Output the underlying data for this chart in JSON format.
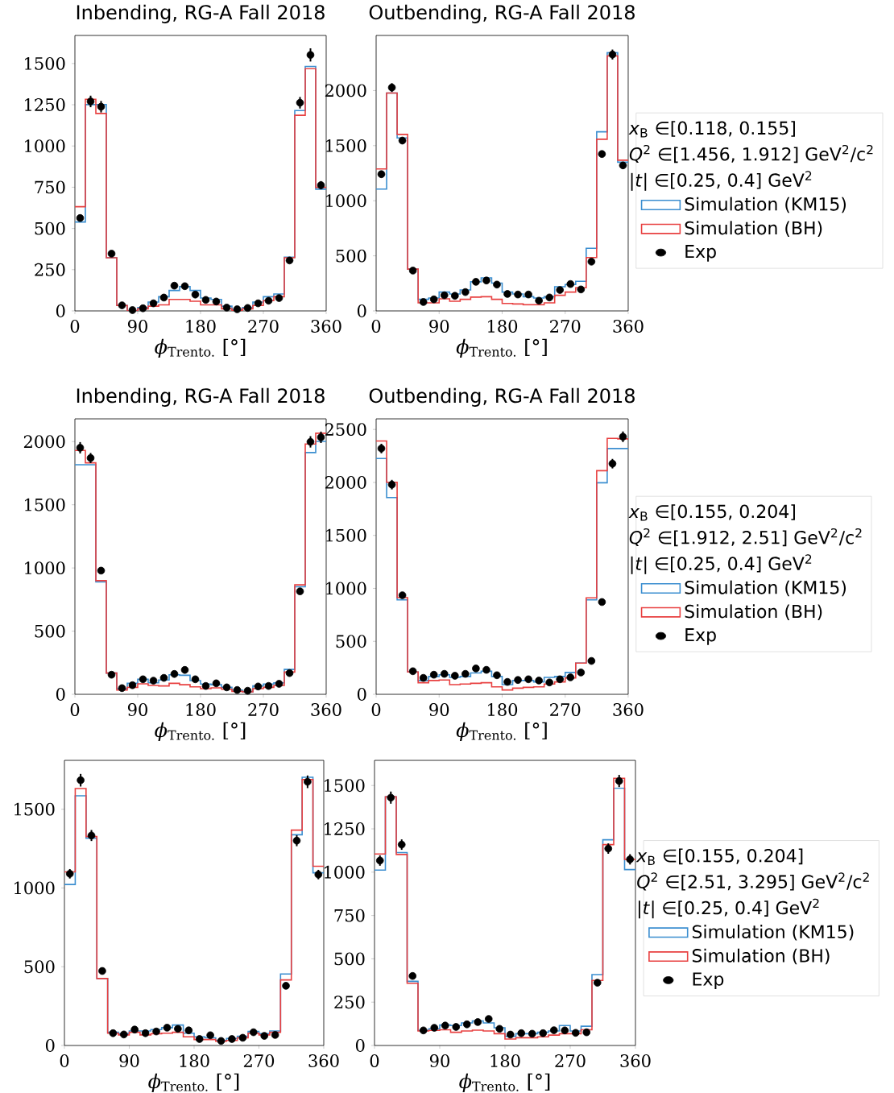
{
  "chart_data": [
    {
      "type": "histogram",
      "title": "Inbending, RG-A Fall 2018",
      "xlabel": "*ϕ*$_{Trento.}$ [°]",
      "bins": [
        0,
        15,
        30,
        45,
        60,
        75,
        90,
        105,
        120,
        135,
        150,
        165,
        180,
        195,
        210,
        225,
        240,
        255,
        270,
        285,
        300,
        315,
        330,
        345,
        360
      ],
      "xlim": [
        0,
        360
      ],
      "xticks": [
        0,
        90,
        180,
        270,
        360
      ],
      "ylim": [
        0,
        1670
      ],
      "yticks": [
        0,
        250,
        500,
        750,
        1000,
        1250,
        1500
      ],
      "legend": false,
      "series": [
        {
          "color": "#3b8ed0",
          "values": [
            539,
            1251,
            1251,
            322,
            33,
            0,
            21,
            54,
            86,
            124,
            147,
            124,
            78,
            70,
            29,
            10,
            21,
            54,
            86,
            103,
            326,
            1215,
            1482,
            738
          ]
        },
        {
          "color": "#e84040",
          "values": [
            632,
            1283,
            1197,
            322,
            33,
            0,
            13,
            29,
            37,
            70,
            70,
            59,
            37,
            37,
            13,
            3,
            13,
            33,
            62,
            86,
            322,
            1186,
            1469,
            749
          ]
        },
        {
          "type": "scatter",
          "color": "#000000",
          "marker": "circle",
          "x": [
            7.5,
            22.5,
            37.5,
            52.5,
            67.5,
            82.5,
            97.5,
            112.5,
            127.5,
            142.5,
            157.5,
            172.5,
            187.5,
            202.5,
            217.5,
            232.5,
            247.5,
            262.5,
            277.5,
            292.5,
            307.5,
            322.5,
            337.5,
            352.5
          ],
          "values": [
            563,
            1270,
            1238,
            347,
            34,
            5,
            16,
            46,
            81,
            153,
            150,
            99,
            67,
            57,
            20,
            10,
            18,
            46,
            62,
            78,
            306,
            1262,
            1552,
            762
          ],
          "errors": [
            20,
            35,
            35,
            null,
            null,
            null,
            null,
            null,
            null,
            null,
            null,
            null,
            null,
            null,
            null,
            null,
            null,
            null,
            null,
            null,
            null,
            35,
            40,
            25
          ]
        }
      ]
    },
    {
      "type": "histogram",
      "title": "Outbending, RG-A Fall 2018",
      "xlabel": "*ϕ*$_{Trento.}$ [°]",
      "bins": [
        0,
        15,
        30,
        45,
        60,
        75,
        90,
        105,
        120,
        135,
        150,
        165,
        180,
        195,
        210,
        225,
        240,
        255,
        270,
        285,
        300,
        315,
        330,
        345,
        360
      ],
      "xlim": [
        0,
        360
      ],
      "xticks": [
        0,
        90,
        180,
        270,
        360
      ],
      "ylim": [
        0,
        2500
      ],
      "yticks": [
        0,
        500,
        1000,
        1500,
        2000
      ],
      "legend": "right",
      "annotations": [
        "*x*$_{B}$ ∈[0.118, 0.155]",
        "*Q*$^{2}$ ∈[1.456, 1.912] GeV$^{2}$/c$^{2}$",
        "|*t*|   ∈[0.25, 0.4] GeV$^{2}$"
      ],
      "series": [
        {
          "name": "Simulation (KM15)",
          "color": "#3b8ed0",
          "values": [
            1106,
            1978,
            1570,
            379,
            105,
            117,
            171,
            154,
            190,
            264,
            300,
            252,
            171,
            154,
            129,
            117,
            129,
            220,
            239,
            269,
            569,
            1626,
            2344,
            1350
          ]
        },
        {
          "name": "Simulation (BH)",
          "color": "#e84040",
          "values": [
            1289,
            1978,
            1602,
            379,
            73,
            73,
            110,
            88,
            105,
            125,
            129,
            105,
            68,
            63,
            56,
            56,
            73,
            142,
            171,
            210,
            484,
            1558,
            2315,
            1368
          ]
        },
        {
          "name": "Exp",
          "type": "scatter",
          "color": "#000000",
          "marker": "circle",
          "x": [
            7.5,
            22.5,
            37.5,
            52.5,
            67.5,
            82.5,
            97.5,
            112.5,
            127.5,
            142.5,
            157.5,
            172.5,
            187.5,
            202.5,
            217.5,
            232.5,
            247.5,
            262.5,
            277.5,
            292.5,
            307.5,
            322.5,
            337.5,
            352.5
          ],
          "values": [
            1241,
            2027,
            1546,
            366,
            81,
            105,
            142,
            137,
            171,
            264,
            276,
            239,
            154,
            149,
            149,
            93,
            122,
            190,
            244,
            195,
            447,
            1424,
            2327,
            1321
          ],
          "errors": [
            30,
            40,
            30,
            null,
            null,
            null,
            null,
            null,
            null,
            null,
            null,
            null,
            null,
            null,
            null,
            null,
            null,
            null,
            null,
            null,
            null,
            30,
            45,
            30
          ]
        }
      ]
    },
    {
      "type": "histogram",
      "title": "Inbending, RG-A Fall 2018",
      "xlabel": "*ϕ*$_{Trento.}$ [°]",
      "bins": [
        0,
        15,
        30,
        45,
        60,
        75,
        90,
        105,
        120,
        135,
        150,
        165,
        180,
        195,
        210,
        225,
        240,
        255,
        270,
        285,
        300,
        315,
        330,
        345,
        360
      ],
      "xlim": [
        0,
        360
      ],
      "xticks": [
        0,
        90,
        180,
        270,
        360
      ],
      "ylim": [
        0,
        2180
      ],
      "yticks": [
        0,
        500,
        1000,
        1500,
        2000
      ],
      "legend": false,
      "series": [
        {
          "color": "#3b8ed0",
          "values": [
            1817,
            1817,
            890,
            168,
            45,
            87,
            119,
            91,
            113,
            155,
            151,
            108,
            81,
            76,
            55,
            34,
            19,
            66,
            81,
            91,
            197,
            851,
            1913,
            2002
          ]
        },
        {
          "color": "#e84040",
          "values": [
            1930,
            1832,
            900,
            168,
            34,
            55,
            83,
            70,
            66,
            87,
            76,
            59,
            45,
            51,
            40,
            23,
            19,
            45,
            55,
            70,
            176,
            866,
            1981,
            2066
          ]
        },
        {
          "type": "scatter",
          "color": "#000000",
          "marker": "circle",
          "x": [
            7.5,
            22.5,
            37.5,
            52.5,
            67.5,
            82.5,
            97.5,
            112.5,
            127.5,
            142.5,
            157.5,
            172.5,
            187.5,
            202.5,
            217.5,
            232.5,
            247.5,
            262.5,
            277.5,
            292.5,
            307.5,
            322.5,
            337.5,
            352.5
          ],
          "values": [
            1951,
            1870,
            979,
            155,
            49,
            72,
            119,
            108,
            130,
            161,
            193,
            119,
            66,
            87,
            55,
            34,
            28,
            62,
            66,
            83,
            168,
            815,
            1998,
            2034
          ],
          "errors": [
            45,
            40,
            null,
            null,
            null,
            null,
            null,
            null,
            null,
            null,
            null,
            null,
            null,
            null,
            null,
            null,
            null,
            null,
            null,
            null,
            null,
            null,
            45,
            45
          ]
        }
      ]
    },
    {
      "type": "histogram",
      "title": "Outbending, RG-A Fall 2018",
      "xlabel": "*ϕ*$_{Trento.}$ [°]",
      "bins": [
        0,
        15,
        30,
        45,
        60,
        75,
        90,
        105,
        120,
        135,
        150,
        165,
        180,
        195,
        210,
        225,
        240,
        255,
        270,
        285,
        300,
        315,
        330,
        345,
        360
      ],
      "xlim": [
        0,
        360
      ],
      "xticks": [
        0,
        90,
        180,
        270,
        360
      ],
      "ylim": [
        0,
        2600
      ],
      "yticks": [
        0,
        500,
        1000,
        1500,
        2000,
        2500
      ],
      "legend": "right",
      "annotations": [
        "*x*$_{B}$ ∈[0.155, 0.204]",
        "*Q*$^{2}$ ∈[1.912, 2.51] GeV$^{2}$/c$^{2}$",
        "|*t*|   ∈[0.25, 0.4] GeV$^{2}$"
      ],
      "series": [
        {
          "name": "Simulation (KM15)",
          "color": "#3b8ed0",
          "values": [
            2226,
            1857,
            892,
            211,
            130,
            168,
            185,
            160,
            168,
            201,
            218,
            168,
            91,
            130,
            130,
            117,
            160,
            168,
            206,
            295,
            892,
            1997,
            2320,
            2320
          ]
        },
        {
          "name": "Simulation (BH)",
          "color": "#e84040",
          "values": [
            2391,
            2002,
            912,
            211,
            109,
            130,
            135,
            91,
            97,
            104,
            109,
            71,
            41,
            58,
            66,
            71,
            97,
            117,
            155,
            295,
            910,
            2111,
            2416,
            2411
          ]
        },
        {
          "name": "Exp",
          "type": "scatter",
          "color": "#000000",
          "marker": "circle",
          "x": [
            7.5,
            22.5,
            37.5,
            52.5,
            67.5,
            82.5,
            97.5,
            112.5,
            127.5,
            142.5,
            157.5,
            172.5,
            187.5,
            202.5,
            217.5,
            232.5,
            247.5,
            262.5,
            277.5,
            292.5,
            307.5,
            322.5,
            337.5,
            352.5
          ],
          "values": [
            2320,
            1979,
            935,
            218,
            155,
            185,
            193,
            175,
            193,
            244,
            231,
            180,
            117,
            135,
            142,
            130,
            112,
            142,
            160,
            206,
            315,
            871,
            2177,
            2431
          ],
          "errors": [
            45,
            45,
            null,
            null,
            null,
            null,
            null,
            null,
            null,
            null,
            null,
            null,
            null,
            null,
            null,
            null,
            null,
            null,
            null,
            null,
            null,
            null,
            45,
            50
          ]
        }
      ]
    },
    {
      "type": "histogram",
      "xlabel": "*ϕ*$_{Trento.}$ [°]",
      "bins": [
        0,
        15,
        30,
        45,
        60,
        75,
        90,
        105,
        120,
        135,
        150,
        165,
        180,
        195,
        210,
        225,
        240,
        255,
        270,
        285,
        300,
        315,
        330,
        345,
        360
      ],
      "xlim": [
        0,
        360
      ],
      "xticks": [
        0,
        90,
        180,
        270,
        360
      ],
      "ylim": [
        0,
        1810
      ],
      "yticks": [
        0,
        500,
        1000,
        1500
      ],
      "legend": false,
      "series": [
        {
          "color": "#3b8ed0",
          "values": [
            1022,
            1585,
            1316,
            425,
            84,
            75,
            92,
            92,
            101,
            113,
            130,
            78,
            55,
            49,
            32,
            44,
            58,
            89,
            75,
            92,
            454,
            1338,
            1703,
            1096
          ]
        },
        {
          "color": "#e84040",
          "values": [
            1102,
            1631,
            1326,
            425,
            78,
            67,
            84,
            67,
            75,
            78,
            84,
            55,
            38,
            38,
            27,
            32,
            49,
            78,
            67,
            84,
            416,
            1367,
            1688,
            1138
          ]
        },
        {
          "type": "scatter",
          "color": "#000000",
          "marker": "circle",
          "x": [
            7.5,
            22.5,
            37.5,
            52.5,
            67.5,
            82.5,
            97.5,
            112.5,
            127.5,
            142.5,
            157.5,
            172.5,
            187.5,
            202.5,
            217.5,
            232.5,
            247.5,
            262.5,
            277.5,
            292.5,
            307.5,
            322.5,
            337.5,
            352.5
          ],
          "values": [
            1090,
            1684,
            1333,
            473,
            78,
            70,
            101,
            78,
            89,
            113,
            106,
            96,
            41,
            65,
            29,
            41,
            49,
            84,
            61,
            67,
            379,
            1300,
            1674,
            1085
          ],
          "errors": [
            30,
            40,
            35,
            null,
            null,
            null,
            null,
            null,
            null,
            null,
            null,
            null,
            null,
            null,
            null,
            null,
            null,
            null,
            null,
            null,
            null,
            35,
            40,
            30
          ]
        }
      ]
    },
    {
      "type": "histogram",
      "xlabel": "*ϕ*$_{Trento.}$ [°]",
      "bins": [
        0,
        15,
        30,
        45,
        60,
        75,
        90,
        105,
        120,
        135,
        150,
        165,
        180,
        195,
        210,
        225,
        240,
        255,
        270,
        285,
        300,
        315,
        330,
        345,
        360
      ],
      "xlim": [
        0,
        360
      ],
      "xticks": [
        0,
        90,
        180,
        270,
        360
      ],
      "ylim": [
        0,
        1645
      ],
      "yticks": [
        0,
        250,
        500,
        750,
        1000,
        1250,
        1500
      ],
      "legend": "right",
      "annotations": [
        "*x*$_{B}$ ∈[0.155, 0.204]",
        "*Q*$^{2}$ ∈[2.51, 3.295] GeV$^{2}$/c$^{2}$",
        "|*t*|   ∈[0.25, 0.4] GeV$^{2}$"
      ],
      "series": [
        {
          "name": "Simulation (KM15)",
          "color": "#3b8ed0",
          "values": [
            1012,
            1435,
            1113,
            370,
            87,
            96,
            118,
            115,
            130,
            142,
            130,
            102,
            53,
            68,
            68,
            76,
            84,
            115,
            84,
            111,
            409,
            1187,
            1485,
            1015
          ]
        },
        {
          "name": "Simulation (BH)",
          "color": "#e84040",
          "values": [
            1105,
            1435,
            1102,
            359,
            84,
            87,
            91,
            76,
            84,
            88,
            84,
            68,
            37,
            45,
            45,
            50,
            60,
            68,
            68,
            91,
            375,
            1159,
            1542,
            1074
          ]
        },
        {
          "name": "Exp",
          "type": "scatter",
          "color": "#000000",
          "marker": "circle",
          "x": [
            7.5,
            22.5,
            37.5,
            52.5,
            67.5,
            82.5,
            97.5,
            112.5,
            127.5,
            142.5,
            157.5,
            172.5,
            187.5,
            202.5,
            217.5,
            232.5,
            247.5,
            262.5,
            277.5,
            292.5,
            307.5,
            322.5,
            337.5,
            352.5
          ],
          "values": [
            1067,
            1430,
            1159,
            401,
            87,
            102,
            115,
            107,
            122,
            135,
            153,
            96,
            63,
            71,
            68,
            71,
            88,
            87,
            73,
            76,
            362,
            1136,
            1526,
            1074
          ],
          "errors": [
            30,
            35,
            30,
            null,
            null,
            null,
            null,
            null,
            null,
            null,
            null,
            null,
            null,
            null,
            null,
            null,
            null,
            null,
            null,
            null,
            null,
            30,
            35,
            30
          ]
        }
      ]
    }
  ]
}
